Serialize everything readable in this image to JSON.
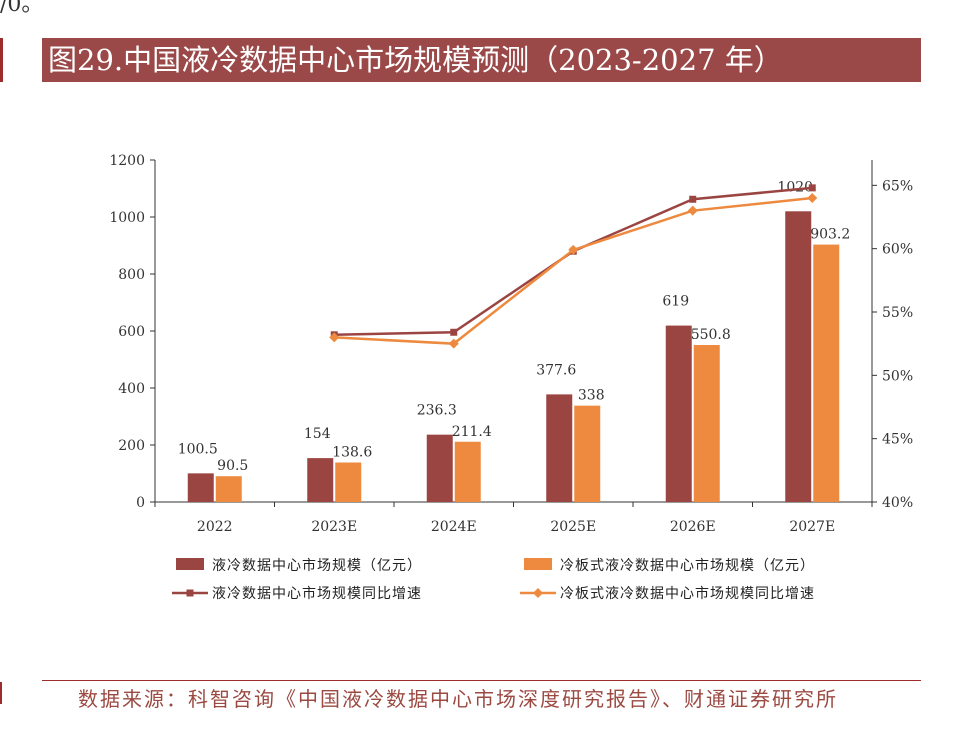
{
  "page": {
    "top_fragment": "/0。",
    "title": "图29.中国液冷数据中心市场规模预测（2023-2027 年）",
    "source": "数据来源：科智咨询《中国液冷数据中心市场深度研究报告》、财通证券研究所"
  },
  "colors": {
    "title_bg": "#9a4848",
    "series_dark": "#9b4542",
    "series_orange": "#ed8a3f",
    "source_text": "#9b4a42"
  },
  "chart_data": {
    "type": "bar",
    "categories": [
      "2022",
      "2023E",
      "2024E",
      "2025E",
      "2026E",
      "2027E"
    ],
    "ylim": [
      0,
      1200
    ],
    "yticks": [
      0,
      200,
      400,
      600,
      800,
      1000,
      1200
    ],
    "y2lim": [
      0.4,
      0.67
    ],
    "y2ticks": [
      "40%",
      "45%",
      "50%",
      "55%",
      "60%",
      "65%"
    ],
    "y2tick_values": [
      0.4,
      0.45,
      0.5,
      0.55,
      0.6,
      0.65
    ],
    "legend_position": "bottom",
    "series": [
      {
        "name": "液冷数据中心市场规模（亿元）",
        "kind": "bar",
        "axis": "left",
        "values": [
          100.5,
          154,
          236.3,
          377.6,
          619,
          1020
        ],
        "labels": [
          "100.5",
          "154",
          "236.3",
          "377.6",
          "619",
          "1020"
        ]
      },
      {
        "name": "冷板式液冷数据中心市场规模（亿元）",
        "kind": "bar",
        "axis": "left",
        "values": [
          90.5,
          138.6,
          211.4,
          338,
          550.8,
          903.2
        ],
        "labels": [
          "90.5",
          "138.6",
          "211.4",
          "338",
          "550.8",
          "903.2"
        ]
      },
      {
        "name": "液冷数据中心市场规模同比增速",
        "kind": "line",
        "axis": "right",
        "values": [
          null,
          0.532,
          0.534,
          0.598,
          0.639,
          0.648
        ]
      },
      {
        "name": "冷板式液冷数据中心市场规模同比增速",
        "kind": "line",
        "axis": "right",
        "values": [
          null,
          0.53,
          0.525,
          0.599,
          0.63,
          0.64
        ]
      }
    ]
  }
}
